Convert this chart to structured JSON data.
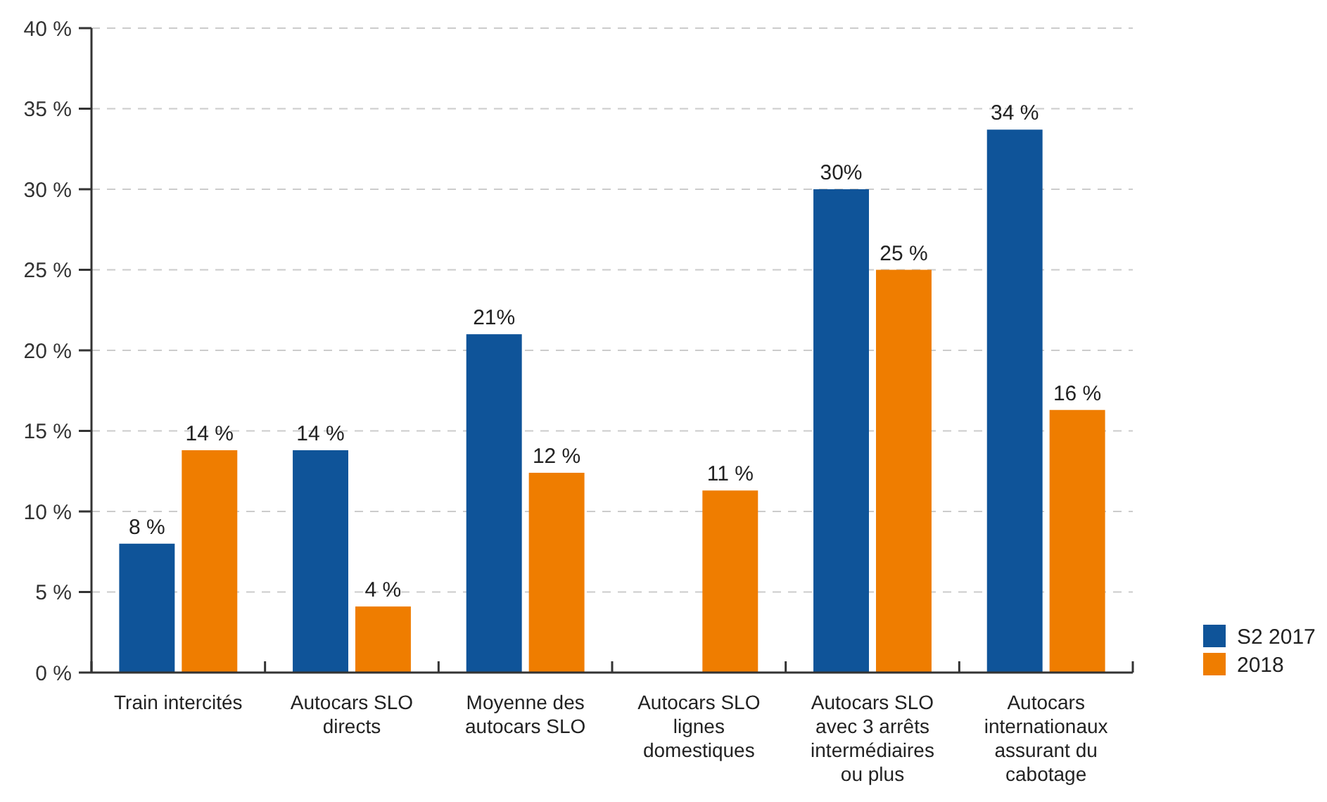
{
  "chart_data": {
    "type": "bar",
    "categories": [
      "Train intercités",
      "Autocars SLO directs",
      "Moyenne des autocars SLO",
      "Autocars SLO lignes domestiques",
      "Autocars SLO avec 3 arrêts intermédiaires ou plus",
      "Autocars internationaux assurant du cabotage"
    ],
    "series": [
      {
        "name": "S2 2017",
        "color": "#0f5499",
        "values": [
          8,
          13.8,
          21,
          null,
          30,
          33.7
        ],
        "value_labels": [
          "8 %",
          "14 %",
          "21%",
          null,
          "30%",
          "34 %"
        ]
      },
      {
        "name": "2018",
        "color": "#ef7d00",
        "values": [
          13.8,
          4.1,
          12.4,
          11.3,
          25,
          16.3
        ],
        "value_labels": [
          "14 %",
          "4 %",
          "12 %",
          "11 %",
          "25 %",
          "16 %"
        ]
      }
    ],
    "ylim": [
      0,
      40
    ],
    "yticks": [
      {
        "value": 0,
        "label": "0 %"
      },
      {
        "value": 5,
        "label": "5 %"
      },
      {
        "value": 10,
        "label": "10 %"
      },
      {
        "value": 15,
        "label": "15 %"
      },
      {
        "value": 20,
        "label": "20 %"
      },
      {
        "value": 25,
        "label": "25 %"
      },
      {
        "value": 30,
        "label": "30 %"
      },
      {
        "value": 35,
        "label": "35 %"
      },
      {
        "value": 40,
        "label": "40 %"
      }
    ],
    "grid": "y",
    "legend": "bottom right"
  }
}
